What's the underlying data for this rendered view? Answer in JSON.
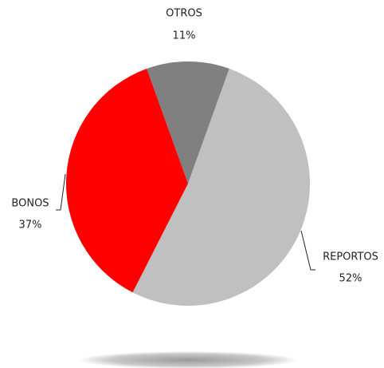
{
  "chart_data": {
    "type": "pie",
    "categories": [
      "OTROS",
      "REPORTOS",
      "BONOS"
    ],
    "values": [
      11,
      52,
      37
    ],
    "value_labels": [
      "11%",
      "52%",
      "37%"
    ],
    "colors": [
      "#808080",
      "#c0c0c0",
      "#ff0000"
    ]
  }
}
